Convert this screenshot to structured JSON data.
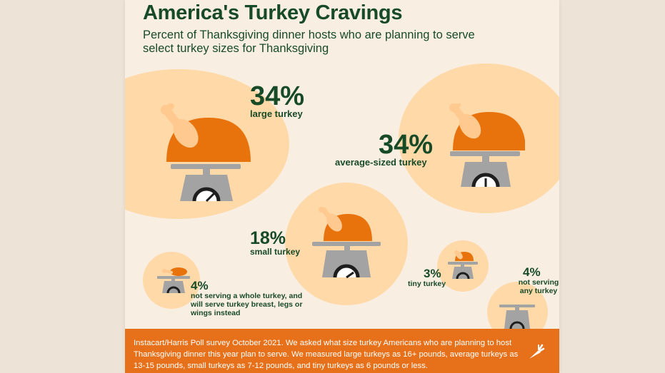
{
  "header": {
    "title": "America's Turkey Cravings",
    "subtitle": "Percent of Thanksgiving dinner hosts who are planning to serve select turkey sizes for Thanksgiving"
  },
  "chart_data": {
    "type": "bubble",
    "title": "America's Turkey Cravings",
    "subtitle": "Percent of Thanksgiving dinner hosts who are planning to serve select turkey sizes for Thanksgiving",
    "unit": "%",
    "items": [
      {
        "category": "large turkey",
        "value": 34,
        "value_label": "34%"
      },
      {
        "category": "average-sized turkey",
        "value": 34,
        "value_label": "34%"
      },
      {
        "category": "small turkey",
        "value": 18,
        "value_label": "18%"
      },
      {
        "category": "not serving a whole turkey, and will serve turkey breast, legs or wings instead",
        "value": 4,
        "value_label": "4%"
      },
      {
        "category": "tiny turkey",
        "value": 3,
        "value_label": "3%"
      },
      {
        "category": "not serving any turkey",
        "value": 4,
        "value_label": "4%"
      }
    ]
  },
  "colors": {
    "title_green": "#174a26",
    "bubble": "#ffd9a8",
    "turkey_orange": "#e8720c",
    "drumstick": "#ffc98f",
    "scale_gray": "#a3a3a3",
    "footer_orange": "#e6711a",
    "background": "#f9eee2"
  },
  "icons": {
    "turkey": "turkey-on-scale-icon",
    "scale": "empty-scale-icon",
    "logo": "carrot-logo-icon"
  },
  "footer": {
    "note": "Instacart/Harris Poll survey October 2021. We asked what size turkey Americans who are planning to host Thanksgiving dinner this year plan to serve. We measured large turkeys as 16+ pounds, average turkeys as 13-15 pounds, small turkeys as 7-12 pounds, and tiny turkeys as 6 pounds or less."
  }
}
